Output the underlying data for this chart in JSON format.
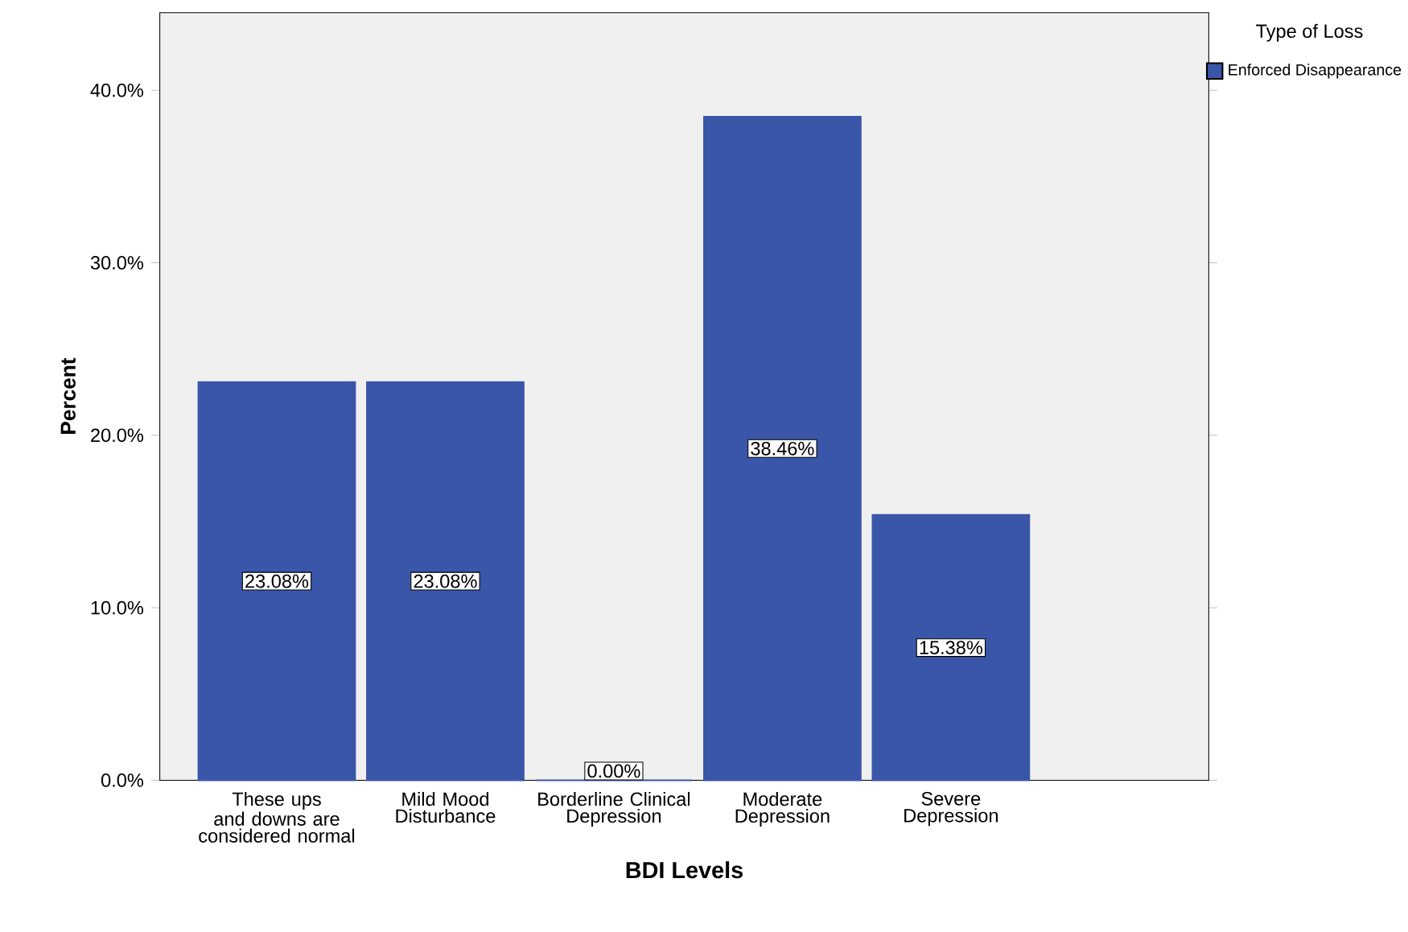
{
  "chart_data": {
    "type": "bar",
    "xlabel": "BDI Levels",
    "ylabel": "Percent",
    "legend_title": "Type of Loss",
    "legend": "top right",
    "categories": [
      "These ups and downs are considered normal",
      "Mild Mood Disturbance",
      "Borderline Clinical Depression",
      "Moderate Depression",
      "Severe Depression"
    ],
    "series": [
      {
        "name": "Enforced Disappearance",
        "color": "#3a56a8",
        "values": [
          23.08,
          23.08,
          0,
          38.46,
          15.38
        ],
        "value_labels": [
          "23.08%",
          "23.08%",
          "0.00%",
          "38.46%",
          "15.38%"
        ]
      }
    ],
    "ylim": [
      0,
      44.5
    ],
    "yticks": [
      {
        "value": 0,
        "label": "0.0%"
      },
      {
        "value": 10,
        "label": "10.0%"
      },
      {
        "value": 20,
        "label": "20.0%"
      },
      {
        "value": 30,
        "label": "30.0%"
      },
      {
        "value": 40,
        "label": "40.0%"
      }
    ]
  }
}
